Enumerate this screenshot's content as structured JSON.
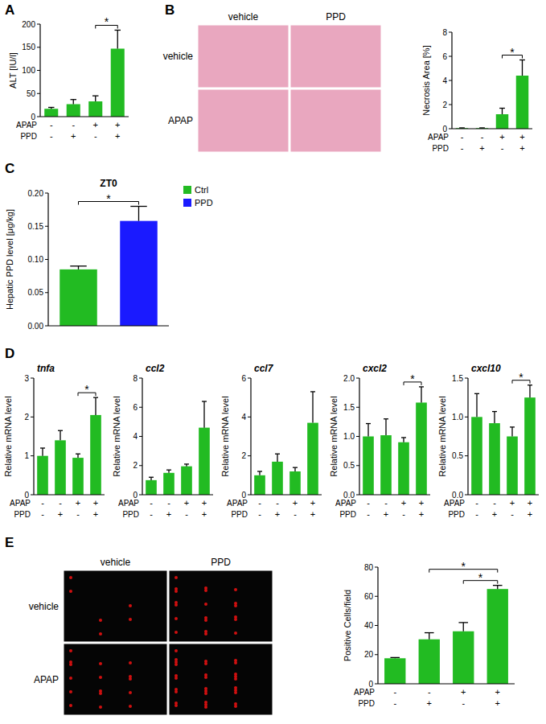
{
  "chart_data": [
    {
      "type": "bar",
      "ylabel": "ALT [IU/l]",
      "categories": [
        null,
        null,
        null,
        null
      ],
      "values": [
        17,
        27,
        33,
        147
      ],
      "errors": [
        3,
        10,
        12,
        40
      ],
      "color": "#22bb22",
      "ylim": [
        0,
        200
      ],
      "yticks": [
        0,
        50,
        100,
        150,
        200
      ],
      "annotations": [
        {
          "text": "*",
          "from": 2,
          "to": 3
        }
      ],
      "condition_rows": [
        {
          "label": "APAP",
          "values": [
            "-",
            "-",
            "+",
            "+"
          ]
        },
        {
          "label": "PPD",
          "values": [
            "-",
            "+",
            "-",
            "+"
          ]
        }
      ]
    },
    {
      "type": "bar",
      "ylabel": "Necrosis Area [%]",
      "categories": [
        null,
        null,
        null,
        null
      ],
      "values": [
        0.05,
        0.05,
        1.2,
        4.4
      ],
      "errors": [
        0.02,
        0.02,
        0.5,
        1.3
      ],
      "color": "#22bb22",
      "ylim": [
        0,
        8
      ],
      "yticks": [
        0,
        2,
        4,
        6,
        8
      ],
      "annotations": [
        {
          "text": "*",
          "from": 2,
          "to": 3
        }
      ],
      "condition_rows": [
        {
          "label": "APAP",
          "values": [
            "-",
            "-",
            "+",
            "+"
          ]
        },
        {
          "label": "PPD",
          "values": [
            "-",
            "+",
            "-",
            "+"
          ]
        }
      ]
    },
    {
      "type": "bar",
      "title": "ZT0",
      "ylabel": "Hepatic PPD level [μg/kg]",
      "categories": [
        null,
        null
      ],
      "series": [
        {
          "name": "Ctrl",
          "color": "#22bb22",
          "values": [
            0.085,
            null
          ],
          "errors": [
            0.005,
            null
          ]
        },
        {
          "name": "PPD",
          "color": "#1a1aff",
          "values": [
            null,
            0.158
          ],
          "errors": [
            null,
            0.022
          ]
        }
      ],
      "legend": "right",
      "ylim": [
        0,
        0.2
      ],
      "yticks": [
        {
          "value": 0,
          "label": "0.00"
        },
        {
          "value": 0.05,
          "label": "0.05"
        },
        {
          "value": 0.1,
          "label": "0.10"
        },
        {
          "value": 0.15,
          "label": "0.15"
        },
        {
          "value": 0.2,
          "label": "0.20"
        }
      ],
      "annotations": [
        {
          "text": "*",
          "from": 0,
          "to": 1
        }
      ]
    },
    {
      "type": "bar",
      "title": "tnfa",
      "ylabel": "Relative mRNA level",
      "categories": [
        null,
        null,
        null,
        null
      ],
      "values": [
        1.0,
        1.4,
        0.95,
        2.05
      ],
      "errors": [
        0.2,
        0.25,
        0.1,
        0.45
      ],
      "color": "#22bb22",
      "ylim": [
        0,
        3
      ],
      "yticks": [
        0,
        1,
        2,
        3
      ],
      "annotations": [
        {
          "text": "*",
          "from": 2,
          "to": 3
        }
      ],
      "condition_rows": [
        {
          "label": "APAP",
          "values": [
            "-",
            "-",
            "+",
            "+"
          ]
        },
        {
          "label": "PPD",
          "values": [
            "-",
            "+",
            "-",
            "+"
          ]
        }
      ]
    },
    {
      "type": "bar",
      "title": "ccl2",
      "ylabel": "Relative mRNA level",
      "categories": [
        null,
        null,
        null,
        null
      ],
      "values": [
        1.0,
        1.5,
        1.95,
        4.6
      ],
      "errors": [
        0.2,
        0.2,
        0.15,
        1.8
      ],
      "color": "#22bb22",
      "ylim": [
        0,
        8
      ],
      "yticks": [
        0,
        2,
        4,
        6,
        8
      ],
      "condition_rows": [
        {
          "label": "APAP",
          "values": [
            "-",
            "-",
            "+",
            "+"
          ]
        },
        {
          "label": "PPD",
          "values": [
            "-",
            "+",
            "-",
            "+"
          ]
        }
      ]
    },
    {
      "type": "bar",
      "title": "ccl7",
      "ylabel": "Relative mRNA level",
      "categories": [
        null,
        null,
        null,
        null
      ],
      "values": [
        1.0,
        1.7,
        1.2,
        3.7
      ],
      "errors": [
        0.2,
        0.4,
        0.2,
        1.6
      ],
      "color": "#22bb22",
      "ylim": [
        0,
        6
      ],
      "yticks": [
        0,
        2,
        4,
        6
      ],
      "condition_rows": [
        {
          "label": "APAP",
          "values": [
            "-",
            "-",
            "+",
            "+"
          ]
        },
        {
          "label": "PPD",
          "values": [
            "-",
            "+",
            "-",
            "+"
          ]
        }
      ]
    },
    {
      "type": "bar",
      "title": "cxcl2",
      "ylabel": "Relative mRNA level",
      "categories": [
        null,
        null,
        null,
        null
      ],
      "values": [
        1.0,
        1.02,
        0.9,
        1.58
      ],
      "errors": [
        0.22,
        0.28,
        0.08,
        0.27
      ],
      "color": "#22bb22",
      "ylim": [
        0,
        2
      ],
      "yticks": [
        {
          "value": 0,
          "label": "0.0"
        },
        {
          "value": 0.5,
          "label": "0.5"
        },
        {
          "value": 1,
          "label": "1.0"
        },
        {
          "value": 1.5,
          "label": "1.5"
        },
        {
          "value": 2,
          "label": "2.0"
        }
      ],
      "annotations": [
        {
          "text": "*",
          "from": 2,
          "to": 3
        }
      ],
      "condition_rows": [
        {
          "label": "APAP",
          "values": [
            "-",
            "-",
            "+",
            "+"
          ]
        },
        {
          "label": "PPD",
          "values": [
            "-",
            "+",
            "-",
            "+"
          ]
        }
      ]
    },
    {
      "type": "bar",
      "title": "cxcl10",
      "ylabel": "Relative mRNA level",
      "categories": [
        null,
        null,
        null,
        null
      ],
      "values": [
        1.0,
        0.92,
        0.75,
        1.25
      ],
      "errors": [
        0.3,
        0.15,
        0.12,
        0.16
      ],
      "color": "#22bb22",
      "ylim": [
        0,
        1.5
      ],
      "yticks": [
        {
          "value": 0,
          "label": "0.0"
        },
        {
          "value": 0.5,
          "label": "0.5"
        },
        {
          "value": 1,
          "label": "1.0"
        },
        {
          "value": 1.5,
          "label": "1.5"
        }
      ],
      "annotations": [
        {
          "text": "*",
          "from": 2,
          "to": 3
        }
      ],
      "condition_rows": [
        {
          "label": "APAP",
          "values": [
            "-",
            "-",
            "+",
            "+"
          ]
        },
        {
          "label": "PPD",
          "values": [
            "-",
            "+",
            "-",
            "+"
          ]
        }
      ]
    },
    {
      "type": "bar",
      "ylabel": "Positive Cells/field",
      "categories": [
        null,
        null,
        null,
        null
      ],
      "values": [
        17.5,
        30.5,
        36,
        65
      ],
      "errors": [
        0.5,
        4.5,
        6,
        2.5
      ],
      "color": "#22bb22",
      "ylim": [
        0,
        80
      ],
      "yticks": [
        0,
        20,
        40,
        60,
        80
      ],
      "annotations": [
        {
          "text": "*",
          "from": 2,
          "to": 3
        },
        {
          "text": "*",
          "from": 1,
          "to": 3
        }
      ],
      "condition_rows": [
        {
          "label": "APAP",
          "values": [
            "-",
            "-",
            "+",
            "+"
          ]
        },
        {
          "label": "PPD",
          "values": [
            "-",
            "+",
            "-",
            "+"
          ]
        }
      ]
    }
  ],
  "panel_labels": [
    "A",
    "B",
    "C",
    "D",
    "E"
  ],
  "image_grids": [
    {
      "col_labels": [
        "vehicle",
        "PPD"
      ],
      "row_labels": [
        "vehicle",
        "APAP"
      ]
    },
    {
      "col_labels": [
        "vehicle",
        "PPD"
      ],
      "row_labels": [
        "vehicle",
        "APAP"
      ]
    }
  ]
}
